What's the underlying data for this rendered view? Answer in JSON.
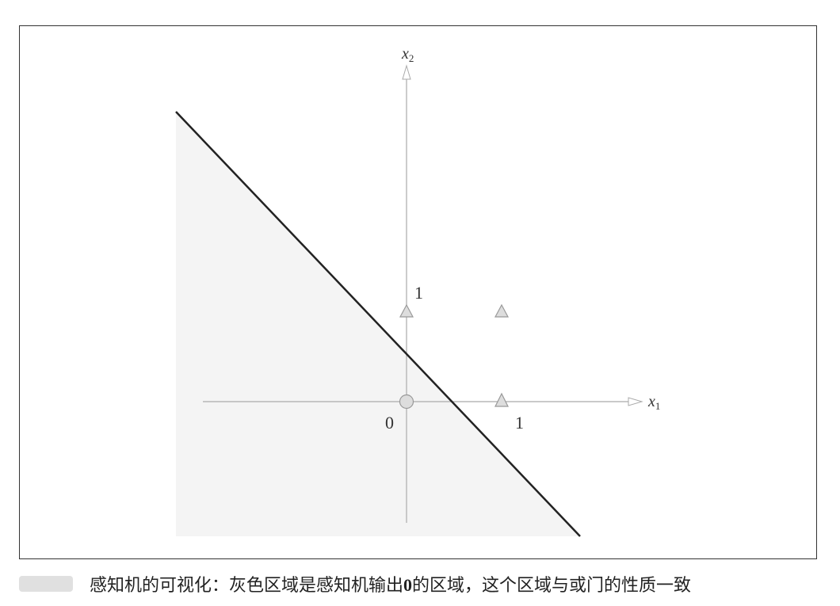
{
  "figure": {
    "x_axis_label": {
      "base": "x",
      "sub": "1"
    },
    "y_axis_label": {
      "base": "x",
      "sub": "2"
    },
    "origin_label": "0",
    "x_tick_label": "1",
    "y_tick_label": "1"
  },
  "caption": {
    "before": "感知机的可视化：灰色区域是感知机输出",
    "bold": "0",
    "after": "的区域，这个区域与或门的性质一致"
  }
}
